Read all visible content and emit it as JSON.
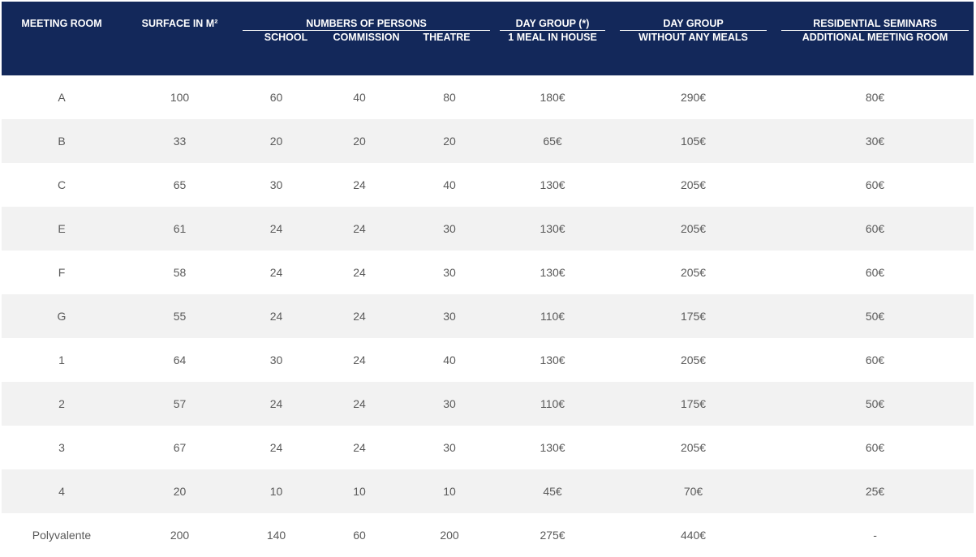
{
  "headers": {
    "meeting_room": "MEETING ROOM",
    "surface": "SURFACE IN M²",
    "persons_group": "NUMBERS OF PERSONS",
    "school": "SCHOOL",
    "commission": "COMMISSION",
    "theatre": "THEATRE",
    "day_group_meal_title": "DAY GROUP (*)",
    "day_group_meal_sub": "1 MEAL IN HOUSE",
    "day_group_nomeal_title": "DAY GROUP",
    "day_group_nomeal_sub": "WITHOUT ANY MEALS",
    "residential_title": "RESIDENTIAL SEMINARS",
    "residential_sub": "ADDITIONAL MEETING ROOM"
  },
  "rows": [
    {
      "room": "A",
      "surface": "100",
      "school": "60",
      "commission": "40",
      "theatre": "80",
      "day_meal": "180€",
      "day_nomeal": "290€",
      "residential": "80€"
    },
    {
      "room": "B",
      "surface": "33",
      "school": "20",
      "commission": "20",
      "theatre": "20",
      "day_meal": "65€",
      "day_nomeal": "105€",
      "residential": "30€"
    },
    {
      "room": "C",
      "surface": "65",
      "school": "30",
      "commission": "24",
      "theatre": "40",
      "day_meal": "130€",
      "day_nomeal": "205€",
      "residential": "60€"
    },
    {
      "room": "E",
      "surface": "61",
      "school": "24",
      "commission": "24",
      "theatre": "30",
      "day_meal": "130€",
      "day_nomeal": "205€",
      "residential": "60€"
    },
    {
      "room": "F",
      "surface": "58",
      "school": "24",
      "commission": "24",
      "theatre": "30",
      "day_meal": "130€",
      "day_nomeal": "205€",
      "residential": "60€"
    },
    {
      "room": "G",
      "surface": "55",
      "school": "24",
      "commission": "24",
      "theatre": "30",
      "day_meal": "110€",
      "day_nomeal": "175€",
      "residential": "50€"
    },
    {
      "room": "1",
      "surface": "64",
      "school": "30",
      "commission": "24",
      "theatre": "40",
      "day_meal": "130€",
      "day_nomeal": "205€",
      "residential": "60€"
    },
    {
      "room": "2",
      "surface": "57",
      "school": "24",
      "commission": "24",
      "theatre": "30",
      "day_meal": "110€",
      "day_nomeal": "175€",
      "residential": "50€"
    },
    {
      "room": "3",
      "surface": "67",
      "school": "24",
      "commission": "24",
      "theatre": "30",
      "day_meal": "130€",
      "day_nomeal": "205€",
      "residential": "60€"
    },
    {
      "room": "4",
      "surface": "20",
      "school": "10",
      "commission": "10",
      "theatre": "10",
      "day_meal": "45€",
      "day_nomeal": "70€",
      "residential": "25€"
    },
    {
      "room": "Polyvalente",
      "surface": "200",
      "school": "140",
      "commission": "60",
      "theatre": "200",
      "day_meal": "275€",
      "day_nomeal": "440€",
      "residential": "-"
    }
  ],
  "colors": {
    "header_bg": "#13285a",
    "header_text": "#ffffff",
    "row_stripe": "#f2f2f2",
    "cell_text": "#5a5a5a"
  }
}
